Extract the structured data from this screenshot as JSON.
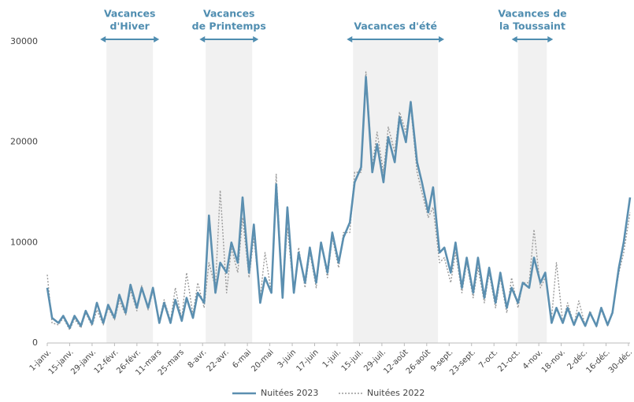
{
  "chart_data": {
    "type": "line",
    "x": [
      0,
      3,
      7,
      10,
      14,
      17,
      21,
      24,
      28,
      31,
      35,
      38,
      42,
      45,
      49,
      52,
      56,
      59,
      63,
      66,
      70,
      73,
      77,
      80,
      84,
      87,
      91,
      94,
      98,
      101,
      105,
      108,
      112,
      115,
      119,
      122,
      126,
      129,
      133,
      136,
      140,
      143,
      147,
      150,
      154,
      157,
      161,
      164,
      168,
      171,
      175,
      178,
      182,
      185,
      189,
      192,
      196,
      199,
      203,
      206,
      210,
      213,
      217,
      220,
      224,
      227,
      231,
      234,
      238,
      241,
      245,
      248,
      252,
      255,
      259,
      262,
      266,
      269,
      273,
      276,
      280,
      283,
      287,
      290,
      294,
      297,
      301,
      304,
      308,
      311,
      315,
      318,
      322,
      325,
      329,
      332,
      336,
      339,
      343,
      346,
      350,
      353,
      357,
      360,
      364
    ],
    "series": [
      {
        "name": "Nuitées 2023",
        "color": "#5b8fb0",
        "style": "solid",
        "values": [
          5500,
          2500,
          2000,
          2700,
          1500,
          2700,
          1700,
          3200,
          1900,
          4000,
          2000,
          3800,
          2500,
          4800,
          3000,
          5800,
          3500,
          5500,
          3500,
          5500,
          2000,
          4000,
          2000,
          4300,
          2200,
          4500,
          2500,
          5000,
          4000,
          12700,
          5000,
          8000,
          7000,
          10000,
          8000,
          14500,
          7000,
          11800,
          4000,
          6500,
          5000,
          15800,
          4500,
          13500,
          5000,
          9000,
          6000,
          9500,
          6000,
          10000,
          7000,
          11000,
          8000,
          10500,
          12000,
          16000,
          17500,
          26500,
          17000,
          19800,
          16000,
          20500,
          18000,
          22500,
          20000,
          24000,
          18000,
          16000,
          13000,
          15500,
          9000,
          9500,
          7000,
          10000,
          5500,
          8500,
          5000,
          8500,
          4500,
          7500,
          4000,
          7000,
          3500,
          5500,
          4000,
          6000,
          5500,
          8500,
          6000,
          7000,
          2000,
          3500,
          2000,
          3500,
          1800,
          3000,
          1700,
          3000,
          1700,
          3500,
          1800,
          3000,
          7500,
          10000,
          14500
        ]
      },
      {
        "name": "Nuitées 2022",
        "color": "#9a9a9a",
        "style": "dotted",
        "values": [
          6800,
          2000,
          1800,
          2500,
          1300,
          2400,
          1500,
          3000,
          1700,
          3300,
          1800,
          3500,
          2300,
          4200,
          2800,
          5300,
          3200,
          5700,
          3300,
          5200,
          2200,
          4300,
          2200,
          5500,
          2400,
          7000,
          2800,
          6000,
          3500,
          8000,
          5500,
          15200,
          5000,
          9500,
          7000,
          12500,
          6500,
          10500,
          4500,
          9000,
          5000,
          16800,
          5000,
          11500,
          5000,
          9500,
          5500,
          9000,
          5500,
          10000,
          6500,
          10500,
          7500,
          11000,
          11000,
          17000,
          17000,
          27000,
          17500,
          21000,
          17000,
          21500,
          19000,
          23000,
          21000,
          23500,
          17000,
          15000,
          12500,
          13500,
          8000,
          8500,
          6000,
          9000,
          5000,
          8000,
          4500,
          7500,
          4000,
          7000,
          3500,
          6500,
          3000,
          6500,
          3500,
          6000,
          6000,
          11300,
          5500,
          6500,
          2500,
          8000,
          2000,
          4000,
          1800,
          4200,
          1700,
          3200,
          1600,
          3300,
          1700,
          3200,
          7000,
          9000,
          13000
        ]
      }
    ],
    "xlim": [
      0,
      364
    ],
    "xticks": [
      {
        "value": 0,
        "label": "1-janv."
      },
      {
        "value": 14,
        "label": "15-janv."
      },
      {
        "value": 28,
        "label": "29-janv."
      },
      {
        "value": 42,
        "label": "12-févr."
      },
      {
        "value": 56,
        "label": "26-févr."
      },
      {
        "value": 69,
        "label": "11-mars"
      },
      {
        "value": 83,
        "label": "25-mars"
      },
      {
        "value": 97,
        "label": "8-avr."
      },
      {
        "value": 111,
        "label": "22-avr."
      },
      {
        "value": 125,
        "label": "6-mai"
      },
      {
        "value": 139,
        "label": "20-mai"
      },
      {
        "value": 153,
        "label": "3-juin"
      },
      {
        "value": 167,
        "label": "17-juin"
      },
      {
        "value": 181,
        "label": "1-juil."
      },
      {
        "value": 195,
        "label": "15-juil."
      },
      {
        "value": 209,
        "label": "29-juil."
      },
      {
        "value": 223,
        "label": "12-août"
      },
      {
        "value": 237,
        "label": "26-août"
      },
      {
        "value": 251,
        "label": "9-sept."
      },
      {
        "value": 265,
        "label": "23-sept."
      },
      {
        "value": 279,
        "label": "7-oct."
      },
      {
        "value": 293,
        "label": "21-oct."
      },
      {
        "value": 307,
        "label": "4-nov."
      },
      {
        "value": 321,
        "label": "18-nov."
      },
      {
        "value": 335,
        "label": "2-déc."
      },
      {
        "value": 349,
        "label": "16-déc."
      },
      {
        "value": 363,
        "label": "30-déc."
      }
    ],
    "ylim": [
      0,
      30000
    ],
    "yticks": [
      0,
      10000,
      20000,
      30000
    ],
    "grid": false,
    "legend": "bottom",
    "periods": [
      {
        "label": [
          "Vacances",
          "d'Hiver"
        ],
        "start": 37,
        "end": 66
      },
      {
        "label": [
          "Vacances",
          "de Printemps"
        ],
        "start": 99,
        "end": 128
      },
      {
        "label": [
          "Vacances d'été"
        ],
        "start": 191,
        "end": 244
      },
      {
        "label": [
          "Vacances de",
          "la Toussaint"
        ],
        "start": 294,
        "end": 312
      }
    ],
    "period_color": "#f1f1f1",
    "annotation_color": "#4f8db0"
  }
}
